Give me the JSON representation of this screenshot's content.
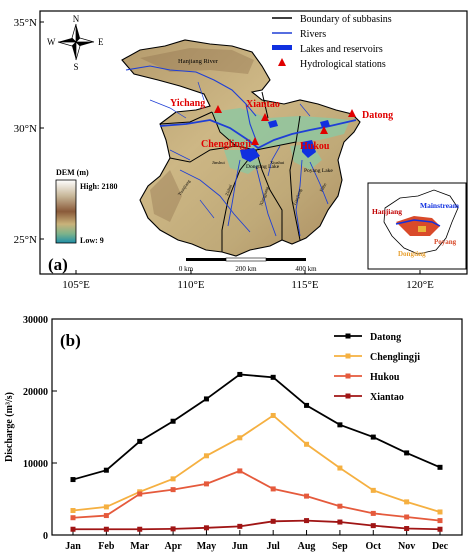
{
  "panel_a": {
    "label": "(a)",
    "lat_labels": [
      "35°N",
      "30°N",
      "25°N"
    ],
    "lon_labels": [
      "105°E",
      "110°E",
      "115°E",
      "120°E"
    ],
    "compass": {
      "n": "N",
      "s": "S",
      "e": "E",
      "w": "W"
    },
    "legend": [
      {
        "label": "Boundary of subbasins",
        "symbol": "black-line",
        "color": "#000000"
      },
      {
        "label": "Rivers",
        "symbol": "blue-line",
        "color": "#1f3fd6"
      },
      {
        "label": "Lakes and reservoirs",
        "symbol": "blue-bar",
        "color": "#1030e0"
      },
      {
        "label": "Hydrological stations",
        "symbol": "red-triangle",
        "color": "#e00000"
      }
    ],
    "dem": {
      "title": "DEM (m)",
      "high": "High: 2180",
      "low": "Low: 9"
    },
    "stations": [
      "Yichang",
      "Xiantao",
      "Datong",
      "Chenglingji",
      "Hukou"
    ],
    "map_labels": {
      "hanjiang_river": "Hanjiang River",
      "dongting_lake": "Dongting Lake",
      "poyang_lake": "Poyang Lake",
      "jinshui": "Jinshui",
      "yuanjiang": "Yuanjiang",
      "zishui": "Zishui",
      "xiangjiang": "Xiangjiang",
      "ganjiang": "Ganjiang",
      "fuhe": "Fuhe",
      "xiushui": "Xiushui"
    },
    "scale_bar": {
      "labels": [
        "0 km",
        "200 km",
        "400 km"
      ]
    },
    "inset": {
      "hanjiang": "Hanjiang",
      "mainstream": "Mainstream",
      "dongting": "Dongting",
      "poyang": "Poyang"
    }
  },
  "panel_b": {
    "label": "(b)",
    "ylabel": "Discharge (m³/s)",
    "chart_data": {
      "type": "line",
      "categories": [
        "Jan",
        "Feb",
        "Mar",
        "Apr",
        "May",
        "Jun",
        "Jul",
        "Aug",
        "Sep",
        "Oct",
        "Nov",
        "Dec"
      ],
      "ylim": [
        0,
        30000
      ],
      "yticks": [
        0,
        10000,
        20000,
        30000
      ],
      "legend_position": "top-right",
      "series": [
        {
          "name": "Datong",
          "color": "#000000",
          "values": [
            7700,
            9000,
            13000,
            15800,
            18900,
            22300,
            21900,
            18000,
            15300,
            13600,
            11400,
            9400
          ]
        },
        {
          "name": "Chenglingji",
          "color": "#f5b041",
          "values": [
            3400,
            3900,
            6000,
            7800,
            11000,
            13500,
            16600,
            12600,
            9300,
            6200,
            4600,
            3200
          ]
        },
        {
          "name": "Hukou",
          "color": "#e55a3c",
          "values": [
            2400,
            2700,
            5700,
            6300,
            7100,
            8900,
            6400,
            5400,
            4000,
            3000,
            2500,
            2000
          ]
        },
        {
          "name": "Xiantao",
          "color": "#a01515",
          "values": [
            800,
            800,
            800,
            850,
            1000,
            1200,
            1900,
            2000,
            1800,
            1300,
            900,
            800
          ]
        }
      ]
    }
  }
}
